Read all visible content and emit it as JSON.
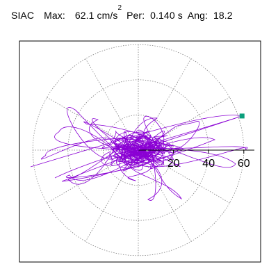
{
  "header": {
    "station": "SIAC",
    "max_label": "Max:",
    "max_value": "62.1",
    "max_unit_base": "cm/s",
    "max_unit_exp": "2",
    "per_label": "Per:",
    "per_value": "0.140 s",
    "ang_label": "Ang:",
    "ang_value": "18.2"
  },
  "chart_data": {
    "type": "polar-scatter-trace",
    "title": "SIAC Max: 62.1 cm/s2 Per: 0.140 s Ang: 18.2",
    "radial_ticks": [
      20,
      40,
      60
    ],
    "radial_max": 66,
    "angular_grid_deg": [
      0,
      30,
      60,
      90,
      120,
      150,
      180,
      210,
      240,
      270,
      300,
      330
    ],
    "rings": [
      20,
      40,
      60
    ],
    "grid": true,
    "max_point": {
      "r": 62.1,
      "angle_deg": 18.2
    },
    "colors": {
      "trace": "#8a00d4",
      "marker": "#0a9f7c",
      "grid": "#7f7f7f",
      "axis": "#000000"
    }
  }
}
